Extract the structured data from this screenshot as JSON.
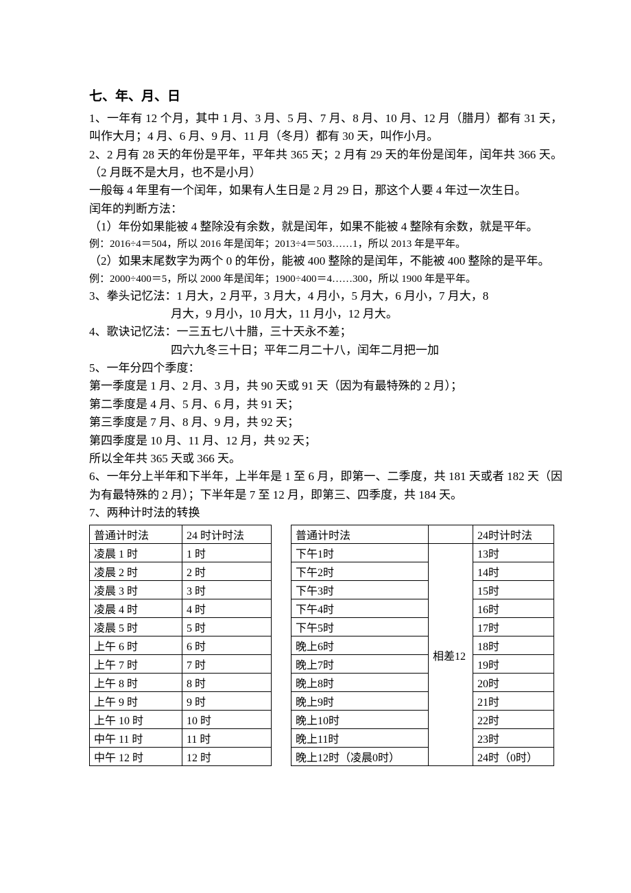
{
  "title": "七、年、月、日",
  "p1": "1、一年有 12 个月，其中 1 月、3 月、5 月、7 月、8 月、10 月、12 月（腊月）都有 31 天，叫作大月；4 月、6 月、9 月、11 月（冬月）都有 30 天，叫作小月。",
  "p2": "2、2 月有 28 天的年份是平年，平年共 365 天；2 月有 29 天的年份是闰年，闰年共 366 天。（2 月既不是大月，也不是小月）",
  "p3": "一般每 4 年里有一个闰年，如果有人生日是 2 月 29 日，那这个人要 4 年过一次生日。",
  "p4": "闰年的判断方法：",
  "p5": "（1）年份如果能被 4 整除没有余数，就是闰年，如果不能被 4 整除有余数，就是平年。",
  "p5ex": "例：2016÷4＝504，所以 2016 年是闰年；2013÷4＝503……1，所以 2013 年是平年。",
  "p6": "（2）如果末尾数字为两个 0 的年份，能被 400 整除的是闰年，不能被 400 整除的是平年。",
  "p6ex": "例：2000÷400＝5，所以 2000 年是闰年；1900÷400＝4……300，所以 1900 年是平年。",
  "p7a": "3、拳头记忆法：1 月大，2 月平，3 月大，4 月小，5 月大，6 月小，7 月大，8",
  "p7b": "月大，9 月小，10 月大，11 月小，12 月大。",
  "p8a": "4、歌诀记忆法：一三五七八十腊，三十天永不差；",
  "p8b": "四六九冬三十日；平年二月二十八，闰年二月把一加",
  "p9": "5、一年分四个季度：",
  "p9a": "第一季度是 1 月、2 月、3 月，共 90 天或 91 天（因为有最特殊的 2 月）；",
  "p9b": "第二季度是 4 月、5 月、6 月，共 91 天；",
  "p9c": "第三季度是 7 月、8 月、9 月，共 92 天；",
  "p9d": "第四季度是 10 月、11 月、12 月，共 92 天；",
  "p9e": "所以全年共 365 天或 366 天。",
  "p10": "6、一年分上半年和下半年，上半年是 1 至 6 月，即第一、二季度，共 181 天或者 182 天（因为有最特殊的 2 月）；下半年是 7 至 12 月，即第三、四季度，共 184 天。",
  "p11": "7、两种计时法的转换",
  "tableA": {
    "header": [
      "普通计时法",
      "24 时计时法"
    ],
    "rows": [
      [
        "凌晨 1 时",
        "1 时"
      ],
      [
        "凌晨 2 时",
        "2 时"
      ],
      [
        "凌晨 3 时",
        "3 时"
      ],
      [
        "凌晨 4 时",
        "4 时"
      ],
      [
        "凌晨 5 时",
        "5 时"
      ],
      [
        "上午 6 时",
        "6 时"
      ],
      [
        "上午 7 时",
        "7 时"
      ],
      [
        "上午 8 时",
        "8 时"
      ],
      [
        "上午 9 时",
        "9 时"
      ],
      [
        "上午 10 时",
        "10 时"
      ],
      [
        "中午 11 时",
        "11 时"
      ],
      [
        "中午 12 时",
        "12 时"
      ]
    ]
  },
  "tableB": {
    "header": [
      "普通计时法",
      "",
      "24时计时法"
    ],
    "midLabel": "相差12",
    "rows": [
      [
        "下午1时",
        "13时"
      ],
      [
        "下午2时",
        "14时"
      ],
      [
        "下午3时",
        "15时"
      ],
      [
        "下午4时",
        "16时"
      ],
      [
        "下午5时",
        "17时"
      ],
      [
        "晚上6时",
        "18时"
      ],
      [
        "晚上7时",
        "19时"
      ],
      [
        "晚上8时",
        "20时"
      ],
      [
        "晚上9时",
        "21时"
      ],
      [
        "晚上10时",
        "22时"
      ],
      [
        "晚上11时",
        "23时"
      ],
      [
        "晚上12时（凌晨0时）",
        "24时（0时）"
      ]
    ]
  }
}
